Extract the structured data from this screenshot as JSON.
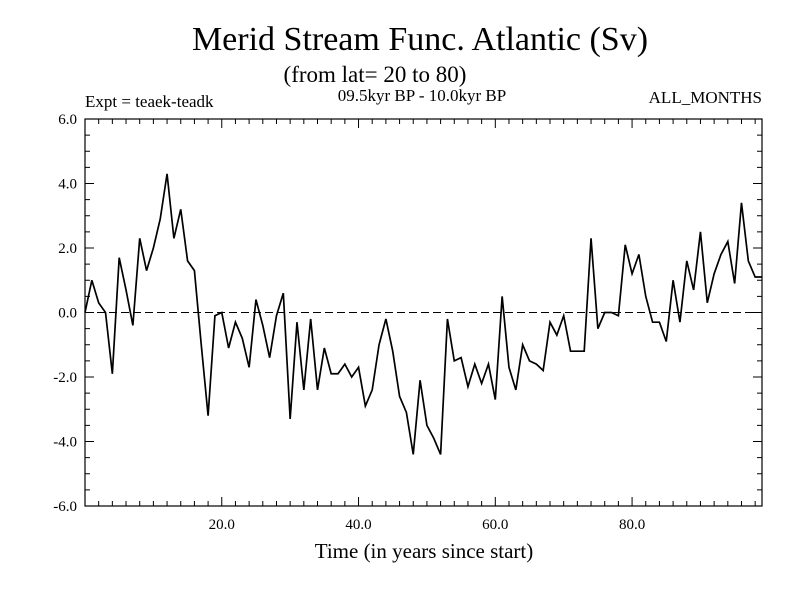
{
  "header": {
    "title": "Merid Stream Func. Atlantic (Sv)",
    "subtitle": "(from lat= 20 to 80)",
    "expt_label": "Expt = teaek-teadk",
    "period_label": "09.5kyr BP - 10.0kyr BP",
    "months_label": "ALL_MONTHS"
  },
  "chart_data": {
    "type": "line",
    "title": "Merid Stream Func. Atlantic (Sv)",
    "xlabel": "Time (in years since start)",
    "ylabel": "",
    "xlim": [
      0,
      99
    ],
    "ylim": [
      -6,
      6
    ],
    "xticks": [
      20,
      40,
      60,
      80
    ],
    "xtick_labels": [
      "20.0",
      "40.0",
      "60.0",
      "80.0"
    ],
    "yticks": [
      -6,
      -4,
      -2,
      0,
      2,
      4,
      6
    ],
    "ytick_labels": [
      "-6.0",
      "-4.0",
      "-2.0",
      "0.0",
      "2.0",
      "4.0",
      "6.0"
    ],
    "reference_line": {
      "y": 0,
      "style": "dashed"
    },
    "series": [
      {
        "name": "Merid Stream Func. Atlantic",
        "x": [
          0,
          1,
          2,
          3,
          4,
          5,
          6,
          7,
          8,
          9,
          10,
          11,
          12,
          13,
          14,
          15,
          16,
          17,
          18,
          19,
          20,
          21,
          22,
          23,
          24,
          25,
          26,
          27,
          28,
          29,
          30,
          31,
          32,
          33,
          34,
          35,
          36,
          37,
          38,
          39,
          40,
          41,
          42,
          43,
          44,
          45,
          46,
          47,
          48,
          49,
          50,
          51,
          52,
          53,
          54,
          55,
          56,
          57,
          58,
          59,
          60,
          61,
          62,
          63,
          64,
          65,
          66,
          67,
          68,
          69,
          70,
          71,
          72,
          73,
          74,
          75,
          76,
          77,
          78,
          79,
          80,
          81,
          82,
          83,
          84,
          85,
          86,
          87,
          88,
          89,
          90,
          91,
          92,
          93,
          94,
          95,
          96,
          97,
          98,
          99
        ],
        "values": [
          0.0,
          1.0,
          0.3,
          0.0,
          -1.9,
          1.7,
          0.7,
          -0.4,
          2.3,
          1.3,
          2.0,
          2.9,
          4.3,
          2.3,
          3.2,
          1.6,
          1.3,
          -1.0,
          -3.2,
          -0.1,
          0.0,
          -1.1,
          -0.3,
          -0.8,
          -1.7,
          0.4,
          -0.4,
          -1.4,
          -0.1,
          0.6,
          -3.3,
          -0.3,
          -2.4,
          -0.2,
          -2.4,
          -1.1,
          -1.9,
          -1.9,
          -1.6,
          -2.0,
          -1.7,
          -2.9,
          -2.4,
          -1.0,
          -0.2,
          -1.2,
          -2.6,
          -3.1,
          -4.4,
          -2.1,
          -3.5,
          -3.9,
          -4.4,
          -0.2,
          -1.5,
          -1.4,
          -2.3,
          -1.6,
          -2.2,
          -1.6,
          -2.7,
          0.5,
          -1.7,
          -2.4,
          -1.0,
          -1.5,
          -1.6,
          -1.8,
          -0.3,
          -0.7,
          -0.1,
          -1.2,
          -1.2,
          -1.2,
          2.3,
          -0.5,
          0.0,
          0.0,
          -0.1,
          2.1,
          1.2,
          1.8,
          0.5,
          -0.3,
          -0.3,
          -0.9,
          1.0,
          -0.3,
          1.6,
          0.7,
          2.5,
          0.3,
          1.2,
          1.8,
          2.2,
          0.9,
          3.4,
          1.6,
          1.1,
          1.1
        ]
      }
    ]
  }
}
